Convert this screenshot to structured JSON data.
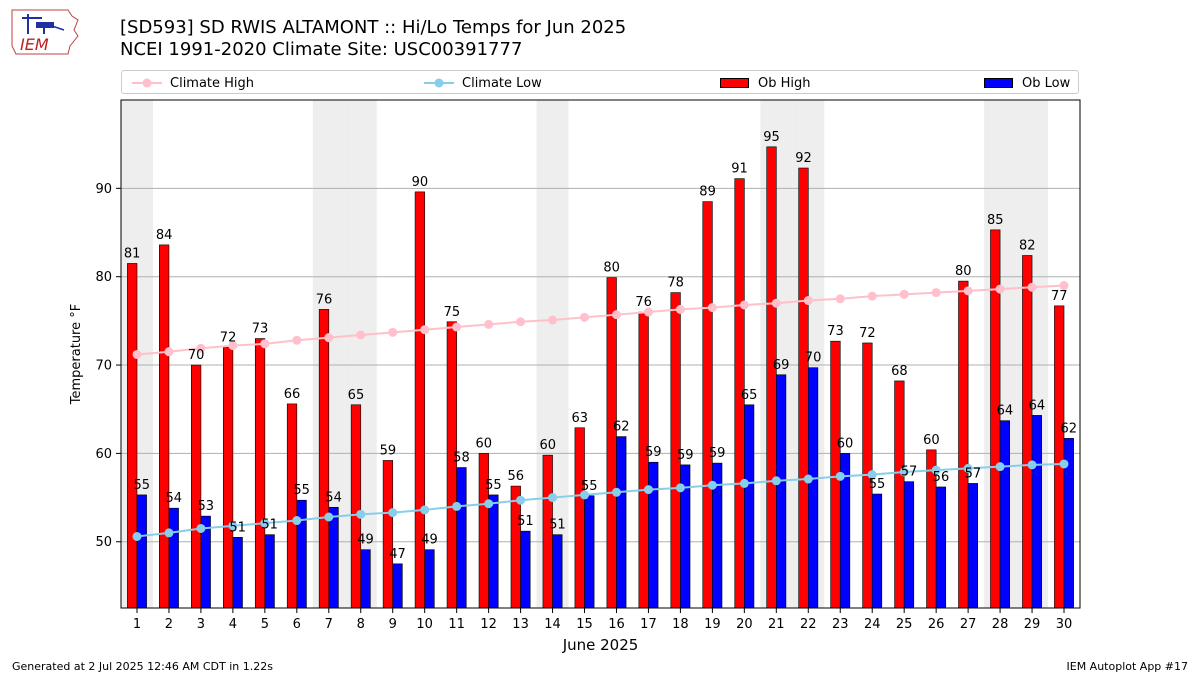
{
  "header": {
    "title_line1": "[SD593] SD RWIS ALTAMONT :: Hi/Lo Temps for Jun 2025",
    "title_line2": "NCEI 1991-2020 Climate Site: USC00391777"
  },
  "logo": {
    "text": "IEM"
  },
  "footer": {
    "left": "Generated at 2 Jul 2025 12:46 AM CDT in 1.22s",
    "right": "IEM Autoplot App #17"
  },
  "colors": {
    "ob_high": "#ff0000",
    "ob_low": "#0000ff",
    "climate_high": "#ffc0cb",
    "climate_low": "#87ceeb",
    "weekend_band": "#eeeeee",
    "grid": "#b0b0b0"
  },
  "chart_data": {
    "type": "bar",
    "xlabel": "June 2025",
    "ylabel": "Temperature °F",
    "ylim": [
      42.5,
      100
    ],
    "yticks": [
      50,
      60,
      70,
      80,
      90
    ],
    "grid": "horizontal",
    "legend_placement": "top",
    "categories": [
      "1",
      "2",
      "3",
      "4",
      "5",
      "6",
      "7",
      "8",
      "9",
      "10",
      "11",
      "12",
      "13",
      "14",
      "15",
      "16",
      "17",
      "18",
      "19",
      "20",
      "21",
      "22",
      "23",
      "24",
      "25",
      "26",
      "27",
      "28",
      "29",
      "30"
    ],
    "shaded_days": [
      1,
      7,
      8,
      14,
      21,
      22,
      28,
      29
    ],
    "series": [
      {
        "name": "Ob High",
        "kind": "bar",
        "values": [
          81.5,
          83.6,
          70.0,
          72.0,
          73.0,
          65.6,
          76.3,
          65.5,
          59.2,
          89.6,
          74.9,
          60.0,
          56.3,
          59.8,
          62.9,
          79.9,
          76.0,
          78.2,
          88.5,
          91.1,
          94.7,
          92.3,
          72.7,
          72.5,
          68.2,
          60.4,
          79.5,
          85.3,
          82.4,
          76.7
        ],
        "labels": [
          "81",
          "84",
          "70",
          "72",
          "73",
          "66",
          "76",
          "65",
          "59",
          "90",
          "75",
          "60",
          "56",
          "60",
          "63",
          "80",
          "76",
          "78",
          "89",
          "91",
          "95",
          "92",
          "73",
          "72",
          "68",
          "60",
          "80",
          "85",
          "82",
          "77"
        ]
      },
      {
        "name": "Ob Low",
        "kind": "bar",
        "values": [
          55.3,
          53.8,
          52.9,
          50.5,
          50.8,
          54.7,
          53.9,
          49.1,
          47.5,
          49.1,
          58.4,
          55.3,
          51.2,
          50.8,
          55.2,
          61.9,
          59.0,
          58.7,
          58.9,
          65.5,
          68.9,
          69.7,
          60.0,
          55.4,
          56.8,
          56.2,
          56.6,
          63.7,
          64.3,
          61.7
        ],
        "labels": [
          "55",
          "54",
          "53",
          "51",
          "51",
          "55",
          "54",
          "49",
          "47",
          "49",
          "58",
          "55",
          "51",
          "51",
          "55",
          "62",
          "59",
          "59",
          "59",
          "65",
          "69",
          "70",
          "60",
          "55",
          "57",
          "56",
          "57",
          "64",
          "64",
          "62"
        ]
      },
      {
        "name": "Climate High",
        "kind": "line",
        "values": [
          71.2,
          71.5,
          71.9,
          72.2,
          72.4,
          72.8,
          73.1,
          73.4,
          73.7,
          74.0,
          74.3,
          74.6,
          74.9,
          75.1,
          75.4,
          75.7,
          76.0,
          76.3,
          76.5,
          76.8,
          77.0,
          77.3,
          77.5,
          77.8,
          78.0,
          78.2,
          78.4,
          78.6,
          78.8,
          79.0
        ]
      },
      {
        "name": "Climate Low",
        "kind": "line",
        "values": [
          50.6,
          51.0,
          51.5,
          51.8,
          52.1,
          52.4,
          52.8,
          53.1,
          53.3,
          53.6,
          54.0,
          54.3,
          54.7,
          55.0,
          55.3,
          55.6,
          55.9,
          56.1,
          56.4,
          56.6,
          56.9,
          57.1,
          57.4,
          57.6,
          57.9,
          58.1,
          58.3,
          58.5,
          58.7,
          58.8
        ]
      }
    ]
  }
}
